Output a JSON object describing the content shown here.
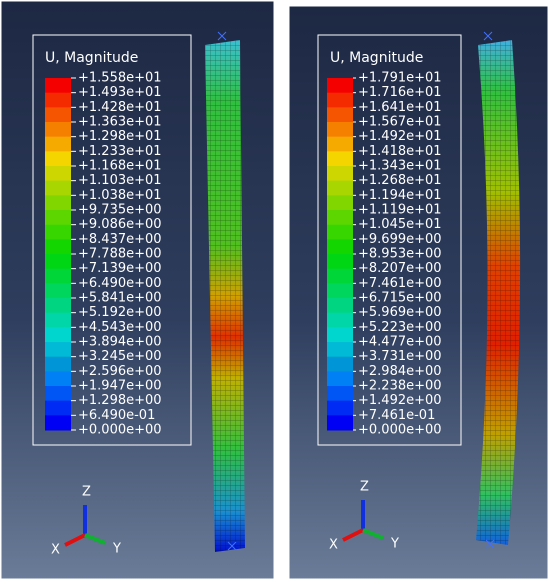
{
  "panels": [
    {
      "legend": {
        "title": "U, Magnitude",
        "labels": [
          "+1.558e+01",
          "+1.493e+01",
          "+1.428e+01",
          "+1.363e+01",
          "+1.298e+01",
          "+1.233e+01",
          "+1.168e+01",
          "+1.103e+01",
          "+1.038e+01",
          "+9.735e+00",
          "+9.086e+00",
          "+8.437e+00",
          "+7.788e+00",
          "+7.139e+00",
          "+6.490e+00",
          "+5.841e+00",
          "+5.192e+00",
          "+4.543e+00",
          "+3.894e+00",
          "+3.245e+00",
          "+2.596e+00",
          "+1.947e+00",
          "+1.298e+00",
          "+6.490e-01",
          "+0.000e+00"
        ]
      },
      "triad": {
        "z": "Z",
        "x": "X",
        "y": "Y"
      }
    },
    {
      "legend": {
        "title": "U, Magnitude",
        "labels": [
          "+1.791e+01",
          "+1.716e+01",
          "+1.641e+01",
          "+1.567e+01",
          "+1.492e+01",
          "+1.418e+01",
          "+1.343e+01",
          "+1.268e+01",
          "+1.194e+01",
          "+1.119e+01",
          "+1.045e+01",
          "+9.699e+00",
          "+8.953e+00",
          "+8.207e+00",
          "+7.461e+00",
          "+6.715e+00",
          "+5.969e+00",
          "+5.223e+00",
          "+4.477e+00",
          "+3.731e+00",
          "+2.984e+00",
          "+2.238e+00",
          "+1.492e+00",
          "+7.461e-01",
          "+0.000e+00"
        ]
      },
      "triad": {
        "z": "Z",
        "x": "X",
        "y": "Y"
      }
    }
  ]
}
